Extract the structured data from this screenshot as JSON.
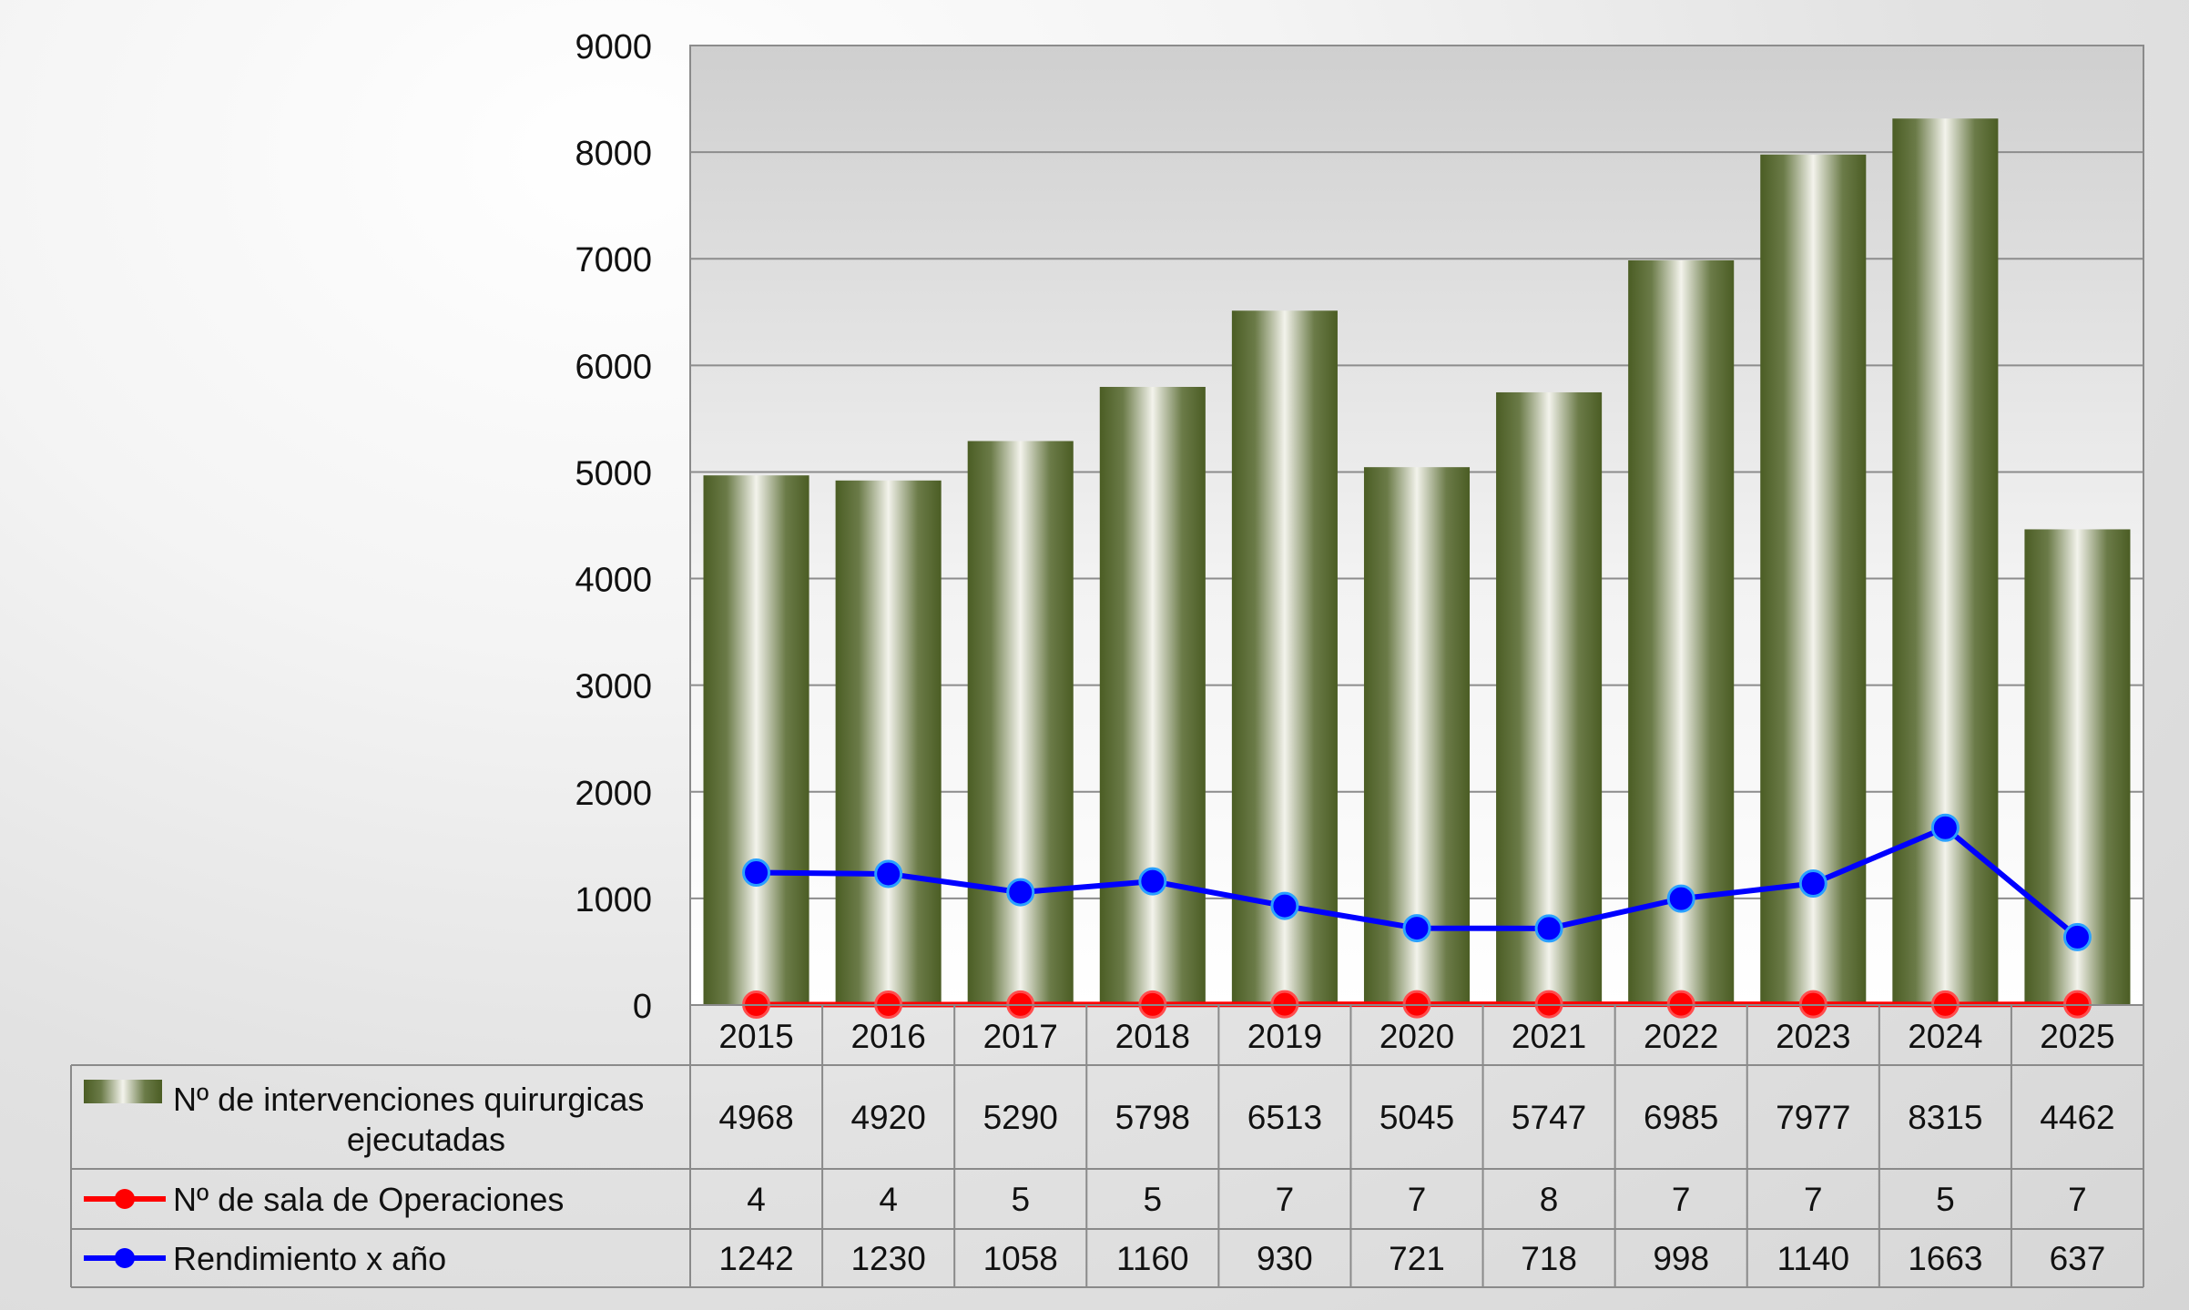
{
  "chart_data": {
    "type": "bar",
    "categories": [
      "2015",
      "2016",
      "2017",
      "2018",
      "2019",
      "2020",
      "2021",
      "2022",
      "2023",
      "2024",
      "2025"
    ],
    "ylim": [
      0,
      9000
    ],
    "yticks": [
      "0",
      "1000",
      "2000",
      "3000",
      "4000",
      "5000",
      "6000",
      "7000",
      "8000",
      "9000"
    ],
    "grid": true,
    "legend_position": "bottom (data table)",
    "series": [
      {
        "name": "Nº  de intervenciones quirurgicas ejecutadas",
        "name_lines": [
          "Nº  de intervenciones quirurgicas",
          "ejecutadas"
        ],
        "type": "bar",
        "color": "#4f6228",
        "values": [
          4968,
          4920,
          5290,
          5798,
          6513,
          5045,
          5747,
          6985,
          7977,
          8315,
          4462
        ],
        "labels": [
          "4968",
          "4920",
          "5290",
          "5798",
          "6513",
          "5045",
          "5747",
          "6985",
          "7977",
          "8315",
          "4462"
        ]
      },
      {
        "name": "Nº de sala de Operaciones",
        "type": "line",
        "color": "#ff0000",
        "values": [
          4,
          4,
          5,
          5,
          7,
          7,
          8,
          7,
          7,
          5,
          7
        ],
        "labels": [
          "4",
          "4",
          "5",
          "5",
          "7",
          "7",
          "8",
          "7",
          "7",
          "5",
          "7"
        ]
      },
      {
        "name": "Rendimiento x año",
        "type": "line",
        "color": "#0000ff",
        "values": [
          1242,
          1230,
          1058,
          1160,
          930,
          721,
          718,
          998,
          1140,
          1663,
          637
        ],
        "labels": [
          "1242",
          "1230",
          "1058",
          "1160",
          "930",
          "721",
          "718",
          "998",
          "1140",
          "1663",
          "637"
        ]
      }
    ]
  }
}
